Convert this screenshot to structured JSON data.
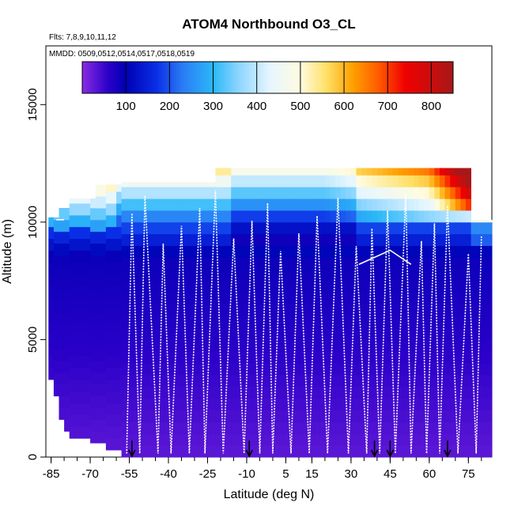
{
  "chart_data": {
    "type": "heatmap",
    "title": "ATOM4 Northbound O3_CL",
    "subtitle_flights": "Flts: 7,8,9,10,11,12",
    "subtitle_dates": "MMDD: 0509,0512,0514,0517,0518,0519",
    "xlabel": "Latitude (deg N)",
    "ylabel": "Altitude (m)",
    "xlim": [
      -87,
      84
    ],
    "ylim": [
      0,
      17500
    ],
    "x_ticks": [
      -85,
      -70,
      -55,
      -40,
      -25,
      -10,
      5,
      15,
      30,
      45,
      60,
      75
    ],
    "y_ticks": [
      0,
      5000,
      10000,
      15000
    ],
    "colorbar": {
      "range": [
        0,
        850
      ],
      "tick_values": [
        100,
        200,
        300,
        400,
        500,
        600,
        700,
        800
      ],
      "stops": [
        {
          "v": 0,
          "c": "#8a2be2"
        },
        {
          "v": 60,
          "c": "#2a00c8"
        },
        {
          "v": 100,
          "c": "#0000b4"
        },
        {
          "v": 170,
          "c": "#0a2ee6"
        },
        {
          "v": 230,
          "c": "#2a7cf5"
        },
        {
          "v": 300,
          "c": "#2ab8f8"
        },
        {
          "v": 360,
          "c": "#8fd6ff"
        },
        {
          "v": 430,
          "c": "#e6f6ff"
        },
        {
          "v": 500,
          "c": "#fffbe0"
        },
        {
          "v": 560,
          "c": "#ffe066"
        },
        {
          "v": 620,
          "c": "#ffa000"
        },
        {
          "v": 680,
          "c": "#ff5a00"
        },
        {
          "v": 740,
          "c": "#f00000"
        },
        {
          "v": 850,
          "c": "#a81818"
        }
      ]
    },
    "arrow_latitudes": [
      -54,
      -9,
      39,
      45,
      67
    ],
    "profile_latitudes": [
      -56,
      -54,
      -51,
      -49,
      -44,
      -42,
      -39,
      -35,
      -32,
      -28,
      -26,
      -22,
      -19,
      -15,
      -11,
      -8,
      -5,
      -2,
      0,
      3,
      7,
      10,
      14,
      17,
      21,
      25,
      29,
      32,
      36,
      38,
      41,
      44,
      47,
      51,
      53,
      57,
      59,
      62,
      64,
      67,
      71,
      75,
      78,
      80
    ]
  }
}
